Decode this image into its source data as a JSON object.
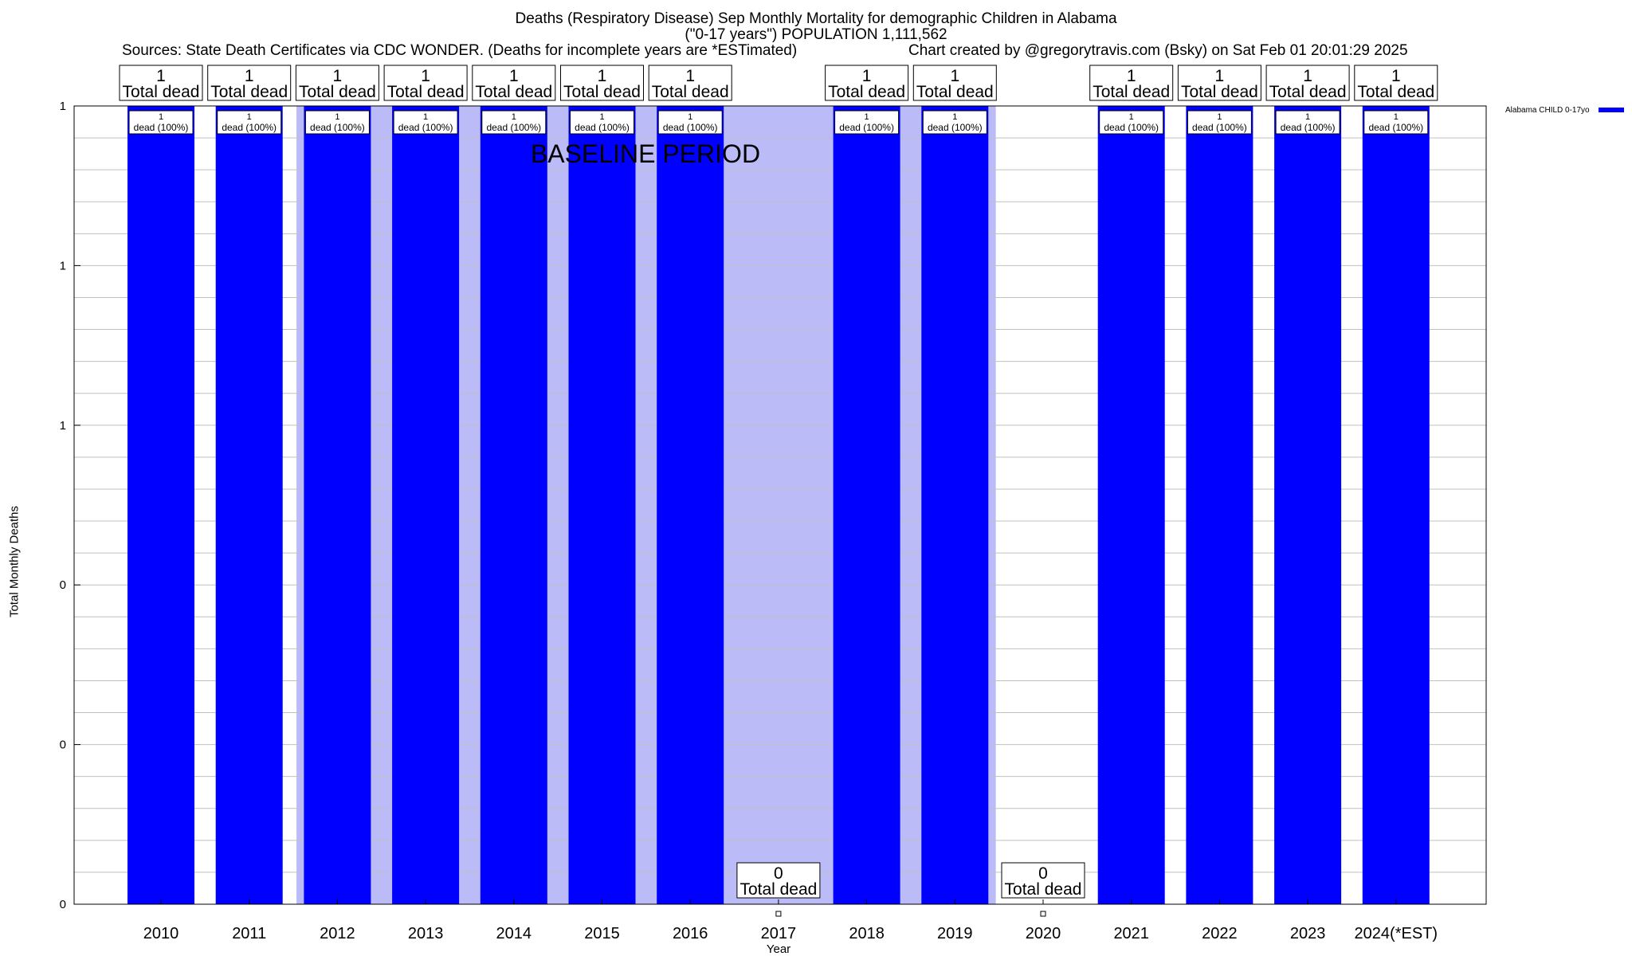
{
  "title_line1": "Deaths (Respiratory Disease) Sep Monthly Mortality for demographic Children in Alabama",
  "title_line2": "(\"0-17 years\") POPULATION 1,111,562",
  "sources": "Sources: State Death Certificates via CDC WONDER. (Deaths for incomplete years are *ESTimated)",
  "credit": "Chart created by @gregorytravis.com (Bsky) on Sat Feb 01 20:01:29 2025",
  "colors": {
    "bar": "#0000ff",
    "baseline_shade": "#bbbbf8",
    "grid": "#c0c0c0"
  },
  "chart_data": {
    "type": "bar",
    "xlabel": "Year",
    "ylabel": "Total Monthly Deaths",
    "ylim": [
      0,
      1
    ],
    "yticks": [
      0,
      0.2,
      0.4,
      0.6,
      0.8,
      1
    ],
    "ytick_labels": [
      "0",
      "0",
      "0",
      "1",
      "1",
      "1"
    ],
    "categories": [
      "2010",
      "2011",
      "2012",
      "2013",
      "2014",
      "2015",
      "2016",
      "2017",
      "2018",
      "2019",
      "2020",
      "2021",
      "2022",
      "2023",
      "2024(*EST)"
    ],
    "series": [
      {
        "name": "Alabama CHILD 0-17yo",
        "values": [
          1,
          1,
          1,
          1,
          1,
          1,
          1,
          0,
          1,
          1,
          0,
          1,
          1,
          1,
          1
        ]
      }
    ],
    "total_labels": [
      "1\nTotal dead",
      "1\nTotal dead",
      "1\nTotal dead",
      "1\nTotal dead",
      "1\nTotal dead",
      "1\nTotal dead",
      "1\nTotal dead",
      "0\nTotal dead",
      "1\nTotal dead",
      "1\nTotal dead",
      "0\nTotal dead",
      "1\nTotal dead",
      "1\nTotal dead",
      "1\nTotal dead",
      "1\nTotal dead"
    ],
    "bar_labels": [
      "1\ndead (100%)",
      "1\ndead (100%)",
      "1\ndead (100%)",
      "1\ndead (100%)",
      "1\ndead (100%)",
      "1\ndead (100%)",
      "1\ndead (100%)",
      "",
      "1\ndead (100%)",
      "1\ndead (100%)",
      "",
      "1\ndead (100%)",
      "1\ndead (100%)",
      "1\ndead (100%)",
      "1\ndead (100%)"
    ],
    "baseline": {
      "label": "BASELINE PERIOD",
      "from": "2012",
      "to": "2019"
    },
    "legend": {
      "position": "top-right"
    },
    "grid": true
  }
}
